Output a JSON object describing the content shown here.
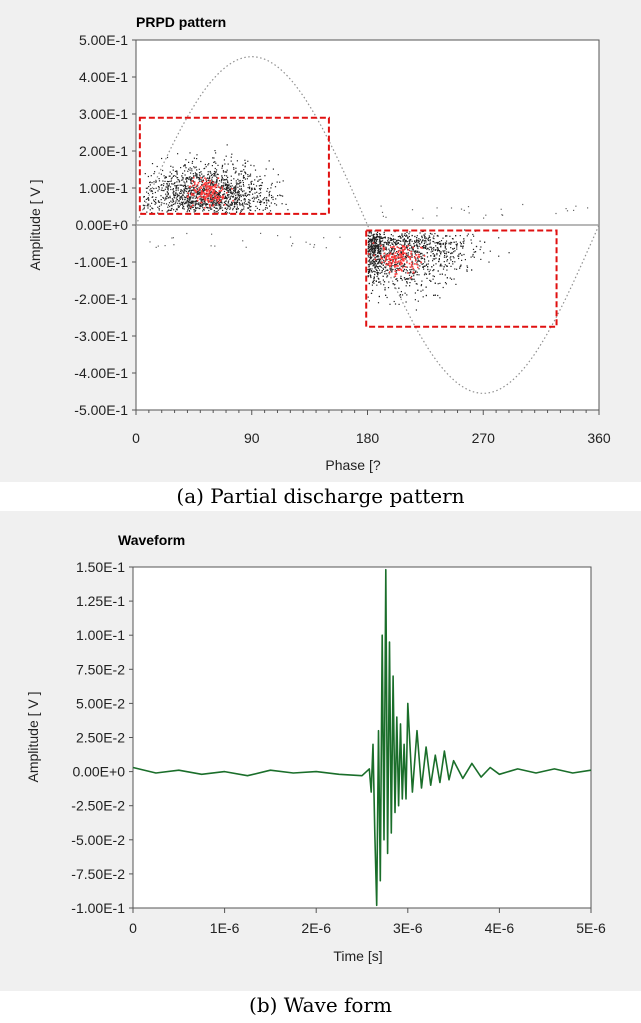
{
  "colors": {
    "panel_bg": "#f0f0f0",
    "plot_bg": "#ffffff",
    "sine_trace": "#909090",
    "zero_line": "#a0a0a0",
    "scatter_dot": "#222222",
    "density_hot": "#ff3b3b",
    "highlight_box": "#e01010",
    "waveform": "#1a6e2a"
  },
  "captions": {
    "a": "(a) Partial discharge pattern",
    "b": "(b) Wave form"
  },
  "chart_data": [
    {
      "type": "scatter",
      "title": "PRPD pattern",
      "xlabel": "Phase [?",
      "ylabel": "Amplitude [ V ]",
      "xlim": [
        0,
        360
      ],
      "ylim": [
        -0.5,
        0.5
      ],
      "x_ticks": [
        "0",
        "90",
        "180",
        "270",
        "360"
      ],
      "y_ticks": [
        "5.00E-1",
        "4.00E-1",
        "3.00E-1",
        "2.00E-1",
        "1.00E-1",
        "0.00E+0",
        "-1.00E-1",
        "-2.00E-1",
        "-3.00E-1",
        "-4.00E-1",
        "-5.00E-1"
      ],
      "grid": false,
      "reference_sine": {
        "amplitude": 0.455,
        "period_deg": 360
      },
      "clusters": [
        {
          "name": "positive half-cycle",
          "phase_range": [
            5,
            120
          ],
          "amplitude_range": [
            0.03,
            0.22
          ],
          "peak_phase": 55,
          "peak_amplitude": 0.09
        },
        {
          "name": "negative half-cycle",
          "phase_range": [
            180,
            320
          ],
          "amplitude_range": [
            -0.23,
            -0.01
          ],
          "peak_phase": 205,
          "peak_amplitude": -0.09
        }
      ],
      "highlight_regions": [
        {
          "x": [
            3,
            150
          ],
          "y": [
            0.03,
            0.29
          ]
        },
        {
          "x": [
            179,
            327
          ],
          "y": [
            -0.275,
            -0.015
          ]
        }
      ]
    },
    {
      "type": "line",
      "title": "Waveform",
      "xlabel": "Time [s]",
      "ylabel": "Amplitude [ V ]",
      "xlim": [
        0,
        5e-06
      ],
      "ylim": [
        -0.1,
        0.15
      ],
      "x_ticks": [
        "0",
        "1E-6",
        "2E-6",
        "3E-6",
        "4E-6",
        "5E-6"
      ],
      "y_ticks": [
        "1.50E-1",
        "1.25E-1",
        "1.00E-1",
        "7.50E-2",
        "5.00E-2",
        "2.50E-2",
        "0.00E+0",
        "-2.50E-2",
        "-5.00E-2",
        "-7.50E-2",
        "-1.00E-1"
      ],
      "grid": false,
      "series": [
        {
          "x": [
            0,
            2.5e-07,
            5e-07,
            7.5e-07,
            1e-06,
            1.25e-06,
            1.5e-06,
            1.75e-06,
            2e-06,
            2.25e-06,
            2.5e-06,
            2.58e-06,
            2.6e-06,
            2.62e-06,
            2.64e-06,
            2.66e-06,
            2.68e-06,
            2.7e-06,
            2.72e-06,
            2.74e-06,
            2.76e-06,
            2.78e-06,
            2.8e-06,
            2.82e-06,
            2.84e-06,
            2.86e-06,
            2.88e-06,
            2.9e-06,
            2.92e-06,
            2.94e-06,
            2.96e-06,
            2.98e-06,
            3e-06,
            3.05e-06,
            3.1e-06,
            3.15e-06,
            3.2e-06,
            3.25e-06,
            3.3e-06,
            3.35e-06,
            3.4e-06,
            3.45e-06,
            3.5e-06,
            3.6e-06,
            3.7e-06,
            3.8e-06,
            3.9e-06,
            4e-06,
            4.2e-06,
            4.4e-06,
            4.6e-06,
            4.8e-06,
            5e-06
          ],
          "y": [
            0.003,
            -0.001,
            0.001,
            -0.002,
            0.0,
            -0.003,
            0.001,
            -0.001,
            0.0,
            -0.002,
            -0.003,
            0.002,
            -0.015,
            0.02,
            -0.045,
            -0.098,
            0.03,
            -0.08,
            0.1,
            -0.05,
            0.148,
            -0.06,
            0.095,
            -0.045,
            0.07,
            -0.03,
            0.04,
            -0.025,
            0.035,
            -0.02,
            0.02,
            -0.02,
            0.05,
            -0.015,
            0.03,
            -0.012,
            0.018,
            -0.01,
            0.012,
            -0.008,
            0.015,
            -0.006,
            0.008,
            -0.005,
            0.006,
            -0.004,
            0.003,
            -0.002,
            0.002,
            -0.001,
            0.002,
            -0.001,
            0.001
          ]
        }
      ]
    }
  ]
}
